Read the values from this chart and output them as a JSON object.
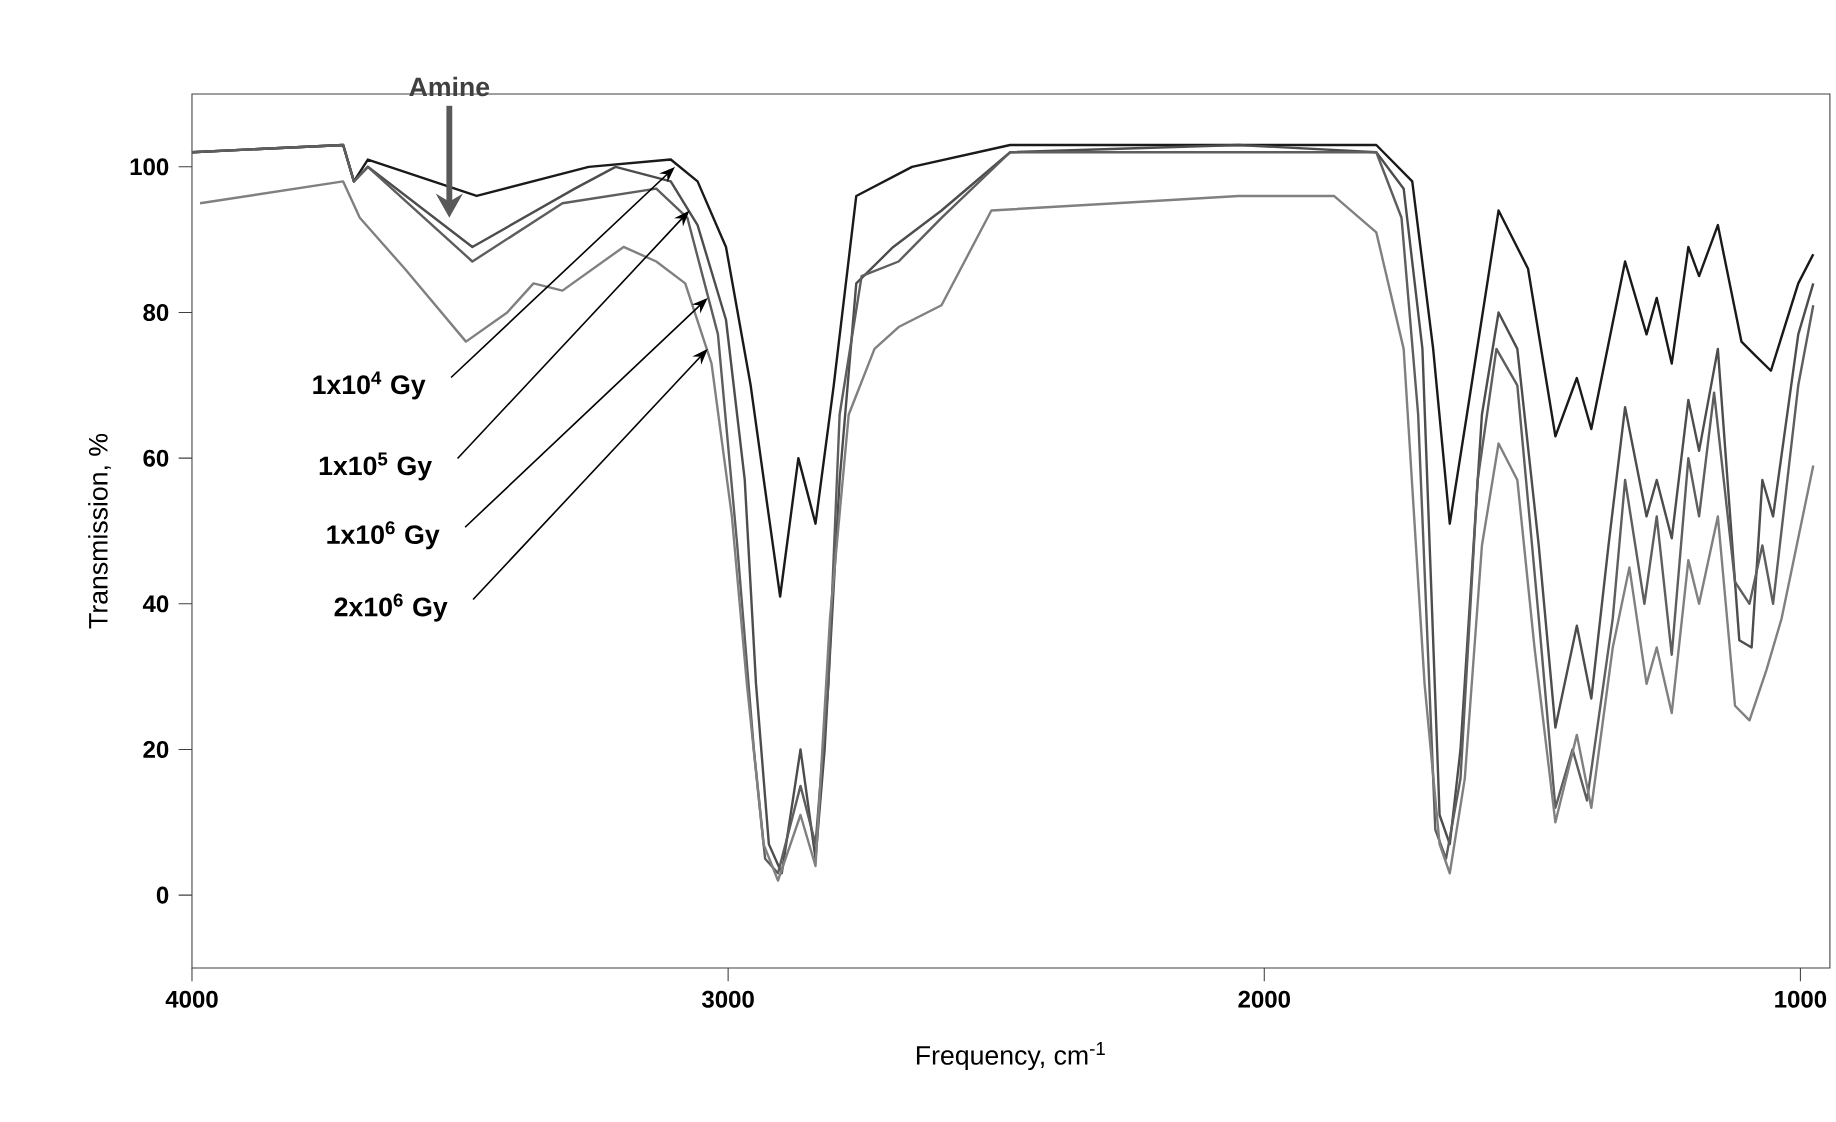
{
  "chart_data": {
    "type": "line",
    "xlabel": "Frequency, cm$^{-1}$",
    "ylabel": "Transmission, %",
    "xlim": [
      4000,
      945
    ],
    "ylim": [
      -10,
      110
    ],
    "xticks": [
      4000,
      3000,
      2000,
      1000
    ],
    "yticks": [
      0,
      20,
      40,
      60,
      80,
      100
    ],
    "annotations": [
      {
        "text": "Amine",
        "x": 3520,
        "y": 93
      },
      {
        "text": "1x10$^{4}$ Gy",
        "x": 3099,
        "y": 100
      },
      {
        "text": "1x10$^{5}$ Gy",
        "x": 3072,
        "y": 94
      },
      {
        "text": "1x10$^{6}$ Gy",
        "x": 3038,
        "y": 82
      },
      {
        "text": "2x10$^{6}$ Gy",
        "x": 3038,
        "y": 75
      }
    ],
    "series": [
      {
        "color": "#1a1a1a",
        "x": [
          4000,
          3718,
          3698,
          3672,
          3469,
          3260,
          3107,
          3057,
          3004,
          2958,
          2924,
          2903,
          2869,
          2837,
          2803,
          2761,
          2657,
          2474,
          2048,
          1791,
          1724,
          1685,
          1654,
          1622,
          1563,
          1508,
          1457,
          1417,
          1390,
          1327,
          1287,
          1268,
          1240,
          1209,
          1189,
          1154,
          1110,
          1083,
          1055,
          1004,
          976
        ],
        "values": [
          102,
          103,
          98,
          101,
          96,
          100,
          101,
          98,
          89,
          70,
          52,
          41,
          60,
          51,
          70,
          96,
          100,
          103,
          103,
          103,
          98,
          75,
          51,
          66,
          94,
          86,
          63,
          71,
          64,
          87,
          77,
          82,
          73,
          89,
          85,
          92,
          76,
          74,
          72,
          84,
          88
        ]
      },
      {
        "color": "#4d4d4d",
        "x": [
          4000,
          3718,
          3698,
          3672,
          3477,
          3286,
          3210,
          3107,
          3057,
          3004,
          2969,
          2948,
          2924,
          2900,
          2865,
          2837,
          2820,
          2792,
          2761,
          2692,
          2602,
          2474,
          2048,
          1791,
          1740,
          1705,
          1673,
          1654,
          1634,
          1594,
          1563,
          1528,
          1488,
          1457,
          1417,
          1390,
          1358,
          1327,
          1287,
          1268,
          1240,
          1209,
          1189,
          1154,
          1114,
          1091,
          1071,
          1051,
          1004,
          976
        ],
        "values": [
          102,
          103,
          98,
          100,
          89,
          97,
          100,
          98,
          92,
          79,
          57,
          29,
          7,
          3,
          20,
          5,
          20,
          57,
          84,
          89,
          94,
          102,
          103,
          102,
          97,
          75,
          11,
          7,
          20,
          66,
          80,
          75,
          48,
          23,
          37,
          27,
          48,
          67,
          52,
          57,
          49,
          68,
          61,
          75,
          35,
          34,
          57,
          52,
          77,
          84
        ]
      },
      {
        "color": "#5e5e5e",
        "x": [
          4000,
          3718,
          3698,
          3672,
          3477,
          3309,
          3134,
          3076,
          3019,
          2983,
          2952,
          2931,
          2907,
          2865,
          2837,
          2813,
          2792,
          2751,
          2682,
          2602,
          2474,
          2048,
          1791,
          1744,
          1713,
          1681,
          1661,
          1634,
          1602,
          1567,
          1528,
          1488,
          1457,
          1425,
          1398,
          1350,
          1327,
          1291,
          1268,
          1240,
          1209,
          1189,
          1161,
          1122,
          1095,
          1071,
          1051,
          1004,
          976
        ],
        "values": [
          102,
          103,
          98,
          100,
          87,
          95,
          97,
          93,
          77,
          48,
          20,
          5,
          3,
          15,
          7,
          29,
          66,
          85,
          87,
          93,
          102,
          102,
          102,
          93,
          66,
          9,
          5,
          16,
          57,
          75,
          70,
          38,
          12,
          20,
          13,
          38,
          57,
          40,
          52,
          33,
          60,
          52,
          69,
          43,
          40,
          48,
          40,
          70,
          81
        ]
      },
      {
        "color": "#808080",
        "x": [
          3985,
          3718,
          3687,
          3603,
          3489,
          3412,
          3363,
          3309,
          3195,
          3134,
          3080,
          3031,
          2993,
          2965,
          2934,
          2907,
          2865,
          2837,
          2810,
          2775,
          2727,
          2682,
          2602,
          2509,
          2277,
          2048,
          1870,
          1791,
          1740,
          1701,
          1673,
          1654,
          1626,
          1594,
          1563,
          1528,
          1496,
          1457,
          1417,
          1390,
          1350,
          1319,
          1287,
          1268,
          1240,
          1209,
          1189,
          1154,
          1122,
          1095,
          1063,
          1035,
          976
        ],
        "values": [
          95,
          98,
          93,
          86,
          76,
          80,
          84,
          83,
          89,
          87,
          84,
          73,
          52,
          29,
          7,
          2,
          11,
          4,
          38,
          66,
          75,
          78,
          81,
          94,
          95,
          96,
          96,
          91,
          75,
          29,
          7,
          3,
          16,
          48,
          62,
          57,
          34,
          10,
          22,
          12,
          34,
          45,
          29,
          34,
          25,
          46,
          40,
          52,
          26,
          24,
          31,
          38,
          59
        ]
      }
    ]
  }
}
